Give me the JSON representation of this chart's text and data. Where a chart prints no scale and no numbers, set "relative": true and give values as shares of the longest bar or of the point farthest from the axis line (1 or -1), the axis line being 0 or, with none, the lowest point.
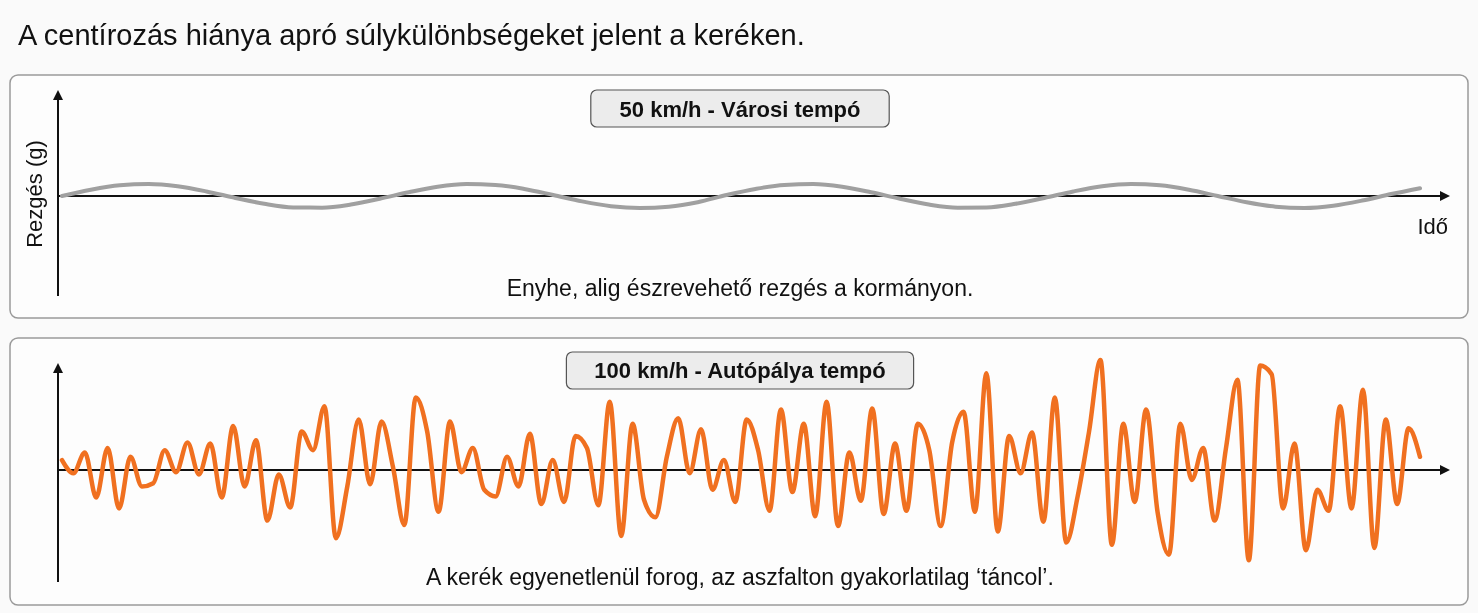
{
  "chart_data": [
    {
      "type": "line",
      "title": "A centírozás hiánya apró súlykülönbségeket jelent a keréken.",
      "subtitle": "50 km/h - Városi tempó",
      "xlabel": "Idő",
      "ylabel": "Rezgés (g)",
      "relative": true,
      "annotations": [
        "Enyhe, alig észrevehető rezgés a kormányon."
      ],
      "categories": [
        null,
        null,
        null,
        null,
        null,
        null,
        null,
        null,
        null,
        null,
        null,
        null,
        null,
        null,
        null,
        null,
        null,
        null,
        null,
        null,
        null,
        null,
        null,
        null,
        null,
        null,
        null,
        null,
        null,
        null,
        null,
        null,
        null,
        null,
        null,
        null,
        null,
        null,
        null,
        null,
        null,
        null,
        null,
        null,
        null,
        null,
        null,
        null
      ],
      "series": [
        {
          "color": "#a0a0a0",
          "values": [
            0,
            0.52,
            0.89,
            1.0,
            0.81,
            0.38,
            -0.16,
            -0.65,
            -0.95,
            -0.97,
            -0.71,
            -0.23,
            0.31,
            0.77,
            0.99,
            0.92,
            0.59,
            0.08,
            -0.45,
            -0.85,
            -1.0,
            -0.89,
            -0.52,
            0.08,
            0.59,
            0.92,
            0.99,
            0.77,
            0.31,
            -0.23,
            -0.71,
            -0.97,
            -0.95,
            -0.65,
            -0.16,
            0.38,
            0.81,
            1.0,
            0.89,
            0.52,
            0,
            -0.52,
            -0.89,
            -1.0,
            -0.81,
            -0.38,
            0.16,
            0.65
          ]
        }
      ]
    },
    {
      "type": "line",
      "title": "100 km/h - Autópálya tempó",
      "relative": true,
      "annotations": [
        "A kerék egyenetlenül forog, az aszfalton gyakorlatilag ‘táncol’."
      ],
      "categories": [
        null,
        null,
        null,
        null,
        null,
        null,
        null,
        null,
        null,
        null,
        null,
        null,
        null,
        null,
        null,
        null,
        null,
        null,
        null,
        null,
        null,
        null,
        null,
        null,
        null,
        null,
        null,
        null,
        null,
        null,
        null,
        null,
        null,
        null,
        null,
        null,
        null,
        null,
        null,
        null,
        null,
        null,
        null,
        null,
        null,
        null,
        null,
        null,
        null,
        null,
        null,
        null,
        null,
        null,
        null,
        null,
        null,
        null,
        null,
        null,
        null,
        null,
        null,
        null,
        null,
        null,
        null,
        null,
        null,
        null,
        null,
        null,
        null,
        null,
        null,
        null,
        null,
        null,
        null,
        null,
        null,
        null,
        null,
        null,
        null,
        null,
        null,
        null,
        null,
        null,
        null,
        null,
        null,
        null,
        null,
        null,
        null,
        null,
        null,
        null,
        null,
        null,
        null,
        null,
        null,
        null,
        null,
        null,
        null,
        null,
        null,
        null,
        null,
        null,
        null,
        null,
        null,
        null,
        null,
        null
      ],
      "series": [
        {
          "color": "#f07020",
          "values": [
            0.09,
            -0.03,
            0.16,
            -0.25,
            0.2,
            -0.35,
            0.12,
            -0.15,
            -0.12,
            0.18,
            -0.02,
            0.25,
            -0.04,
            0.24,
            -0.25,
            0.4,
            -0.15,
            0.27,
            -0.46,
            -0.04,
            -0.34,
            0.35,
            0.18,
            0.58,
            -0.62,
            -0.15,
            0.46,
            -0.13,
            0.44,
            0.03,
            -0.5,
            0.66,
            0.35,
            -0.38,
            0.44,
            -0.02,
            0.2,
            -0.18,
            -0.24,
            0.12,
            -0.15,
            0.33,
            -0.31,
            0.09,
            -0.29,
            0.31,
            0.2,
            -0.32,
            0.62,
            -0.6,
            0.42,
            -0.27,
            -0.43,
            0.12,
            0.47,
            -0.03,
            0.37,
            -0.18,
            0.09,
            -0.29,
            0.46,
            0.18,
            -0.37,
            0.55,
            -0.2,
            0.42,
            -0.42,
            0.62,
            -0.51,
            0.16,
            -0.28,
            0.56,
            -0.4,
            0.24,
            -0.37,
            0.42,
            0.18,
            -0.51,
            0.25,
            0.53,
            -0.38,
            0.88,
            -0.56,
            0.31,
            -0.03,
            0.34,
            -0.47,
            0.66,
            -0.66,
            -0.24,
            0.35,
            1.0,
            -0.68,
            0.42,
            -0.29,
            0.55,
            -0.38,
            -0.77,
            0.42,
            -0.09,
            0.2,
            -0.46,
            0.2,
            0.82,
            -0.82,
            0.95,
            0.87,
            -0.35,
            0.24,
            -0.73,
            -0.18,
            -0.37,
            0.58,
            -0.35,
            0.73,
            -0.71,
            0.46,
            -0.31,
            0.38,
            0.12
          ]
        }
      ]
    }
  ]
}
